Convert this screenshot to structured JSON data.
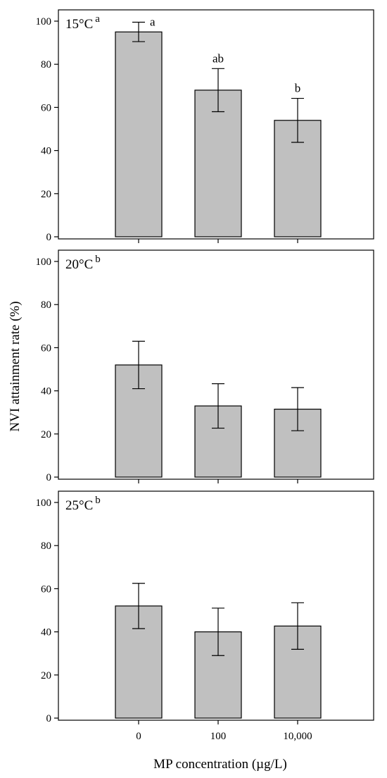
{
  "chart_data": {
    "type": "bar",
    "ylabel": "NVI attainment rate (%)",
    "xlabel": "MP concentration (µg/L)",
    "categories": [
      "0",
      "100",
      "10,000"
    ],
    "ylim": [
      0,
      100
    ],
    "yticks": [
      "0",
      "20",
      "40",
      "60",
      "80",
      "100"
    ],
    "bar_color": "#c0c0c0",
    "panels": [
      {
        "label": "15°C",
        "superscript": "a",
        "values": [
          95,
          68,
          54
        ],
        "errors": [
          4.5,
          10,
          10.2
        ],
        "letters": [
          "a",
          "ab",
          "b"
        ]
      },
      {
        "label": "20°C",
        "superscript": "b",
        "values": [
          52,
          33,
          31.5
        ],
        "errors": [
          11,
          10.3,
          10
        ],
        "letters": [
          "",
          "",
          ""
        ]
      },
      {
        "label": "25°C",
        "superscript": "b",
        "values": [
          52,
          40,
          42.7
        ],
        "errors": [
          10.5,
          11,
          10.8
        ],
        "letters": [
          "",
          "",
          ""
        ]
      }
    ]
  }
}
